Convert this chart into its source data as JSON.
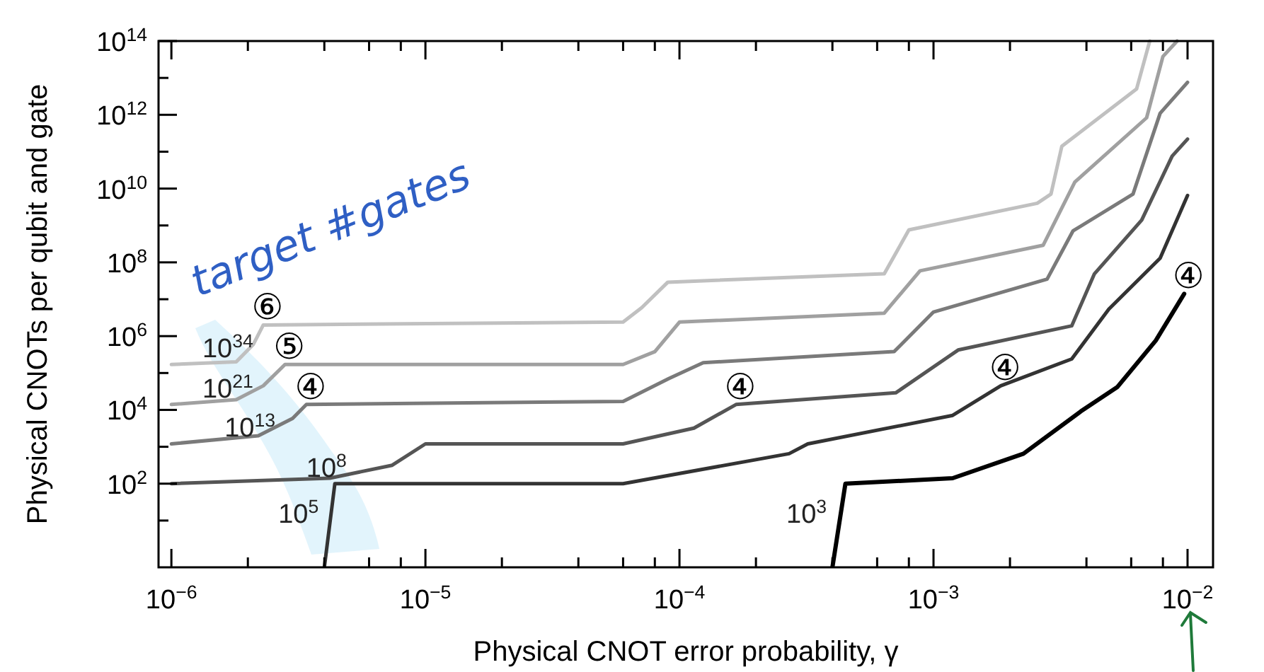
{
  "chart_data": {
    "type": "line",
    "log": "xy",
    "xlabel": "Physical CNOT error probability, γ",
    "ylabel": "Physical CNOTs per qubit and gate",
    "xlim": [
      8.9e-07,
      0.0126
    ],
    "ylim": [
      0.54,
      100000000000000.0
    ],
    "xticks": [
      {
        "value": 1e-06,
        "label": "10$^{−6}$"
      },
      {
        "value": 2e-06,
        "label": null
      },
      {
        "value": 4e-06,
        "label": null
      },
      {
        "value": 6e-06,
        "label": null
      },
      {
        "value": 8e-06,
        "label": null
      },
      {
        "value": 1e-05,
        "label": "10$^{−5}$"
      },
      {
        "value": 2e-05,
        "label": null
      },
      {
        "value": 4e-05,
        "label": null
      },
      {
        "value": 6e-05,
        "label": null
      },
      {
        "value": 8e-05,
        "label": null
      },
      {
        "value": 0.0001,
        "label": "10$^{−4}$"
      },
      {
        "value": 0.0002,
        "label": null
      },
      {
        "value": 0.0004,
        "label": null
      },
      {
        "value": 0.0006,
        "label": null
      },
      {
        "value": 0.0008,
        "label": null
      },
      {
        "value": 0.001,
        "label": "10$^{−3}$"
      },
      {
        "value": 0.002,
        "label": null
      },
      {
        "value": 0.004,
        "label": null
      },
      {
        "value": 0.006,
        "label": null
      },
      {
        "value": 0.008,
        "label": null
      },
      {
        "value": 0.01,
        "label": "10$^{−2}$"
      }
    ],
    "yticks": [
      {
        "value": 10,
        "label": null
      },
      {
        "value": 100,
        "label": "10$^{2}$"
      },
      {
        "value": 1000,
        "label": null
      },
      {
        "value": 10000.0,
        "label": "10$^{4}$"
      },
      {
        "value": 100000.0,
        "label": null
      },
      {
        "value": 1000000.0,
        "label": "10$^{6}$"
      },
      {
        "value": 10000000.0,
        "label": null
      },
      {
        "value": 100000000.0,
        "label": "10$^{8}$"
      },
      {
        "value": 1000000000.0,
        "label": null
      },
      {
        "value": 10000000000.0,
        "label": "10$^{10}$"
      },
      {
        "value": 100000000000.0,
        "label": null
      },
      {
        "value": 1000000000000.0,
        "label": "10$^{12}$"
      },
      {
        "value": 10000000000000.0,
        "label": null
      },
      {
        "value": 100000000000000.0,
        "label": "10$^{14}$"
      }
    ],
    "series": [
      {
        "name": "10$^{34}$",
        "color": "#c0c0c0",
        "x": [
          1e-06,
          1.8e-06,
          2.1e-06,
          2.3e-06,
          6e-05,
          7.1e-05,
          9e-05,
          0.00064,
          0.0008,
          0.00256,
          0.0029,
          0.0032,
          0.0063,
          0.0071
        ],
        "values": [
          170000.0,
          200000.0,
          590000.0,
          2000000.0,
          2400000.0,
          5900000.0,
          29000000.0,
          49000000.0,
          760000000.0,
          4000000000.0,
          7100000000.0,
          140000000000.0,
          5000000000000.0,
          100000000000000.0
        ]
      },
      {
        "name": "10$^{21}$",
        "color": "#a0a0a0",
        "x": [
          1e-06,
          1.8e-06,
          2.3e-06,
          2.8e-06,
          6e-05,
          8e-05,
          0.0001,
          0.00064,
          0.000885,
          0.0027,
          0.0036,
          0.0069,
          0.008,
          0.0091
        ],
        "values": [
          14000.0,
          19000.0,
          45000.0,
          170000.0,
          170000.0,
          380000.0,
          2400000.0,
          4200000.0,
          59000000.0,
          290000000.0,
          15000000000.0,
          830000000000.0,
          38000000000000.0,
          100000000000000.0
        ]
      },
      {
        "name": "10$^{13}$",
        "color": "#7a7a7a",
        "x": [
          1e-06,
          2.2e-06,
          3e-06,
          3.4e-06,
          6e-05,
          9.1e-05,
          0.000124,
          0.0007,
          0.001,
          0.0028,
          0.00354,
          0.0061,
          0.0078,
          0.01
        ],
        "values": [
          1200.0,
          2000.0,
          5900.0,
          14000.0,
          17000.0,
          71000.0,
          190000.0,
          380000.0,
          4500000.0,
          35000000.0,
          710000000.0,
          7100000000.0,
          1100000000000.0,
          7600000000000.0
        ]
      },
      {
        "name": "10$^{8}$",
        "color": "#555555",
        "x": [
          1e-06,
          4.2e-06,
          7.4e-06,
          1e-05,
          6e-05,
          0.000114,
          0.000167,
          0.00071,
          0.00125,
          0.0035,
          0.0043,
          0.0066,
          0.0087,
          0.01
        ],
        "values": [
          100,
          141,
          316,
          1200.0,
          1200.0,
          3200.0,
          14000.0,
          29000.0,
          420000.0,
          1900000.0,
          49000000.0,
          1400000000.0,
          76000000000.0,
          220000000000.0
        ]
      },
      {
        "name": "10$^{5}$",
        "color": "#333333",
        "x": [
          4e-06,
          4.4e-06,
          6e-05,
          0.00027,
          0.00032,
          0.00119,
          0.00184,
          0.0035,
          0.0049,
          0.0078,
          0.01
        ],
        "values": [
          0.54,
          100,
          100,
          650,
          1200.0,
          7100.0,
          45000.0,
          240000.0,
          5400000.0,
          130000000.0,
          6500000000.0
        ]
      },
      {
        "name": "10$^{3}$",
        "color": "#000000",
        "x": [
          0.0004,
          0.00045,
          0.00119,
          0.00226,
          0.0038,
          0.0053,
          0.0075,
          0.0097
        ],
        "values": [
          0.54,
          100,
          141,
          650,
          9100.0,
          42000.0,
          760000.0,
          14000000.0
        ]
      }
    ],
    "annotations": [
      {
        "text": "⑥",
        "x": 2.3e-06,
        "y": 2000000.0
      },
      {
        "text": "⑤",
        "x": 2.8e-06,
        "y": 170000.0
      },
      {
        "text": "④",
        "x": 3.4e-06,
        "y": 14000.0
      },
      {
        "text": "④",
        "x": 0.000167,
        "y": 14000.0
      },
      {
        "text": "④",
        "x": 0.00184,
        "y": 45000.0
      },
      {
        "text": "④",
        "x": 0.0097,
        "y": 14000000.0
      },
      "target #gates"
    ]
  }
}
